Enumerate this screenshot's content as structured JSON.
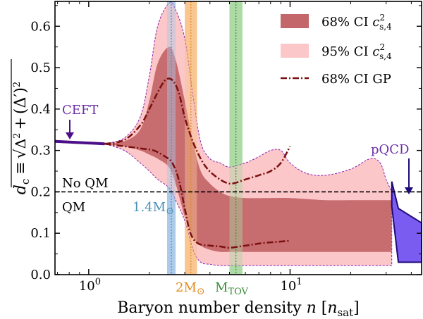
{
  "chart_data": {
    "type": "area",
    "xlabel_main": "Baryon number density",
    "xlabel_var": "n",
    "xlabel_unit": "n",
    "xlabel_unit_sub": "sat",
    "ylabel": "d_c ≡ √(Δ² + (Δ′)²)",
    "ylabel_parts": {
      "lhs_var": "d",
      "lhs_sub": "c",
      "equiv": "≡",
      "d1": "Δ",
      "sq": "2",
      "plus": "+",
      "open": "(",
      "d2": "Δ′",
      "close": ")",
      "sq2": "2"
    },
    "x_log": true,
    "xlim": [
      0.68,
      45
    ],
    "ylim": [
      0.0,
      0.66
    ],
    "x_ticks": [
      {
        "v": 1,
        "base": "10",
        "exp": "0"
      },
      {
        "v": 10,
        "base": "10",
        "exp": "1"
      }
    ],
    "y_ticks": [
      0.0,
      0.1,
      0.2,
      0.3,
      0.4,
      0.5,
      0.6
    ],
    "y_tick_labels": [
      "0.0",
      "0.1",
      "0.2",
      "0.3",
      "0.4",
      "0.5",
      "0.6"
    ],
    "legend": [
      {
        "label": "68% CI",
        "sym": "c",
        "sup": "2",
        "sub": "s,4",
        "style": "fill",
        "color": "#c4676a"
      },
      {
        "label": "95% CI",
        "sym": "c",
        "sup": "2",
        "sub": "s,4",
        "style": "fill",
        "color": "#fcc7c8"
      },
      {
        "label": "68% CI GP",
        "style": "dashdot",
        "color": "#7a1010"
      }
    ],
    "threshold": {
      "y": 0.2,
      "label_above": "No QM",
      "label_below": "QM"
    },
    "vertical_bands": [
      {
        "label": "1.4M",
        "sun": "⊙",
        "x": [
          2.45,
          2.7
        ],
        "color": "#a9c7e8",
        "text_color": "#4a90b8"
      },
      {
        "label": "2M",
        "sun": "⊙",
        "x": [
          3.0,
          3.45
        ],
        "color": "#f8c38c",
        "text_color": "#e08a1e"
      },
      {
        "label": "M",
        "sub": "TOV",
        "x": [
          5.0,
          5.8
        ],
        "color": "#a8d8a0",
        "text_color": "#3a8a3a"
      }
    ],
    "cefit": {
      "label": "CEFT",
      "x": [
        0.68,
        1.2
      ],
      "y": [
        0.322,
        0.316
      ],
      "color": "#4b0f8a"
    },
    "pqcd": {
      "label": "pQCD",
      "x_start": 32,
      "x_end": 45,
      "lower": [
        0.165,
        0.03,
        0.03
      ],
      "upper": [
        0.225,
        0.16,
        0.125
      ],
      "color": "#7b5cf0"
    },
    "ci95": {
      "x": [
        1.2,
        1.5,
        1.8,
        2.0,
        2.2,
        2.5,
        2.7,
        3.0,
        3.3,
        3.6,
        4.0,
        4.5,
        5.0,
        6.0,
        7.0,
        8.0,
        9.0,
        10.0,
        12.0,
        15.0,
        20.0,
        25.0,
        28.0,
        30.0,
        32.0
      ],
      "lower": [
        0.316,
        0.3,
        0.27,
        0.25,
        0.23,
        0.21,
        0.18,
        0.13,
        0.06,
        0.03,
        0.025,
        0.022,
        0.022,
        0.022,
        0.022,
        0.022,
        0.022,
        0.022,
        0.022,
        0.022,
        0.022,
        0.022,
        0.022,
        0.022,
        0.022
      ],
      "upper": [
        0.316,
        0.33,
        0.38,
        0.48,
        0.6,
        0.655,
        0.64,
        0.57,
        0.43,
        0.32,
        0.28,
        0.27,
        0.26,
        0.27,
        0.285,
        0.3,
        0.3,
        0.27,
        0.245,
        0.24,
        0.255,
        0.28,
        0.27,
        0.23,
        0.2
      ]
    },
    "ci68": {
      "x": [
        1.2,
        1.5,
        1.8,
        2.0,
        2.2,
        2.5,
        2.7,
        3.0,
        3.3,
        3.6,
        4.0,
        4.5,
        5.0,
        6.0,
        8.0,
        10.0,
        15.0,
        20.0,
        25.0,
        30.0,
        32.0
      ],
      "lower": [
        0.316,
        0.31,
        0.3,
        0.29,
        0.28,
        0.26,
        0.22,
        0.14,
        0.09,
        0.07,
        0.06,
        0.055,
        0.055,
        0.055,
        0.055,
        0.055,
        0.055,
        0.055,
        0.055,
        0.055,
        0.055
      ],
      "upper": [
        0.316,
        0.322,
        0.35,
        0.42,
        0.51,
        0.55,
        0.52,
        0.42,
        0.32,
        0.25,
        0.22,
        0.2,
        0.19,
        0.185,
        0.185,
        0.185,
        0.18,
        0.18,
        0.18,
        0.18,
        0.18
      ]
    },
    "gp_upper": {
      "x": [
        1.2,
        1.5,
        1.8,
        2.0,
        2.2,
        2.4,
        2.6,
        2.8,
        3.0,
        3.3,
        3.7,
        4.2,
        5.0,
        6.0,
        7.0,
        8.0,
        9.0,
        10.0
      ],
      "y": [
        0.316,
        0.325,
        0.36,
        0.4,
        0.44,
        0.47,
        0.47,
        0.44,
        0.38,
        0.32,
        0.27,
        0.24,
        0.22,
        0.23,
        0.24,
        0.25,
        0.27,
        0.31
      ]
    },
    "gp_lower": {
      "x": [
        1.2,
        1.5,
        1.8,
        2.1,
        2.4,
        2.6,
        2.8,
        3.0,
        3.2,
        3.5,
        4.0,
        4.5,
        5.0,
        6.0,
        7.0,
        8.0,
        9.0,
        10.0
      ],
      "y": [
        0.316,
        0.31,
        0.305,
        0.3,
        0.285,
        0.27,
        0.23,
        0.16,
        0.1,
        0.075,
        0.07,
        0.068,
        0.065,
        0.07,
        0.075,
        0.078,
        0.08,
        0.082
      ]
    }
  }
}
